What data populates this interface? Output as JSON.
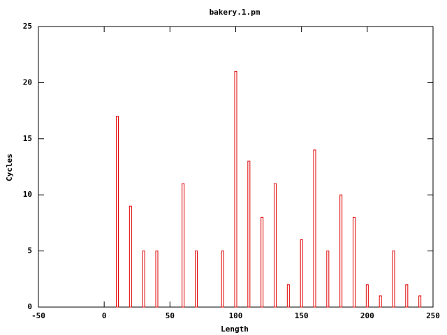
{
  "chart_data": {
    "type": "bar",
    "title": "bakery.1.pm",
    "x_label": "Length",
    "y_label": "Cycles",
    "x": [
      10,
      20,
      30,
      40,
      60,
      70,
      90,
      100,
      110,
      120,
      130,
      140,
      150,
      160,
      170,
      180,
      190,
      200,
      210,
      220,
      230,
      240
    ],
    "values": [
      17,
      9,
      5,
      5,
      11,
      5,
      5,
      21,
      13,
      8,
      11,
      2,
      6,
      14,
      5,
      10,
      8,
      2,
      1,
      5,
      2,
      1
    ],
    "color": "#e00000",
    "xlim": [
      -50,
      250
    ],
    "xticks": [
      -50,
      0,
      50,
      100,
      150,
      200,
      250
    ],
    "ylim": [
      0,
      25
    ],
    "yticks": [
      0,
      5,
      10,
      15,
      20,
      25
    ]
  }
}
